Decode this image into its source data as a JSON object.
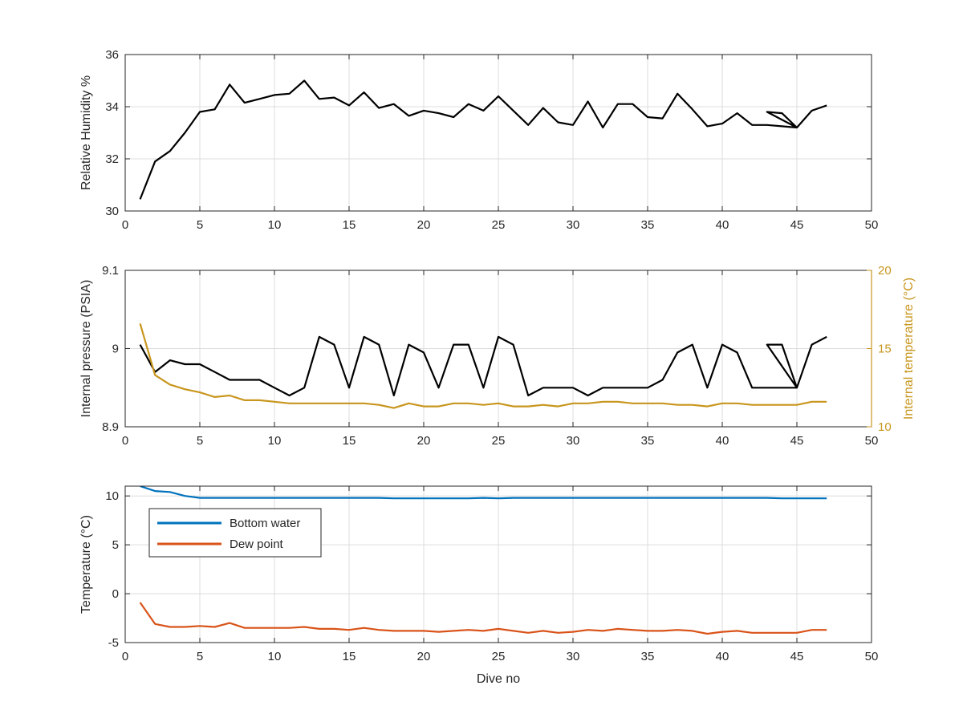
{
  "colors": {
    "pressure": "#000000",
    "humidity": "#000000",
    "internal_temperature": "#c8961e",
    "bottom_water": "#0072bd",
    "dew_point": "#d95319",
    "grid": "#dcdcdc",
    "axis": "#262626"
  },
  "chart_data": [
    {
      "type": "line",
      "xlabel": "",
      "ylabel": "Relative Humidity %",
      "xlim": [
        0,
        50
      ],
      "ylim": [
        30,
        36
      ],
      "xticks": [
        0,
        5,
        10,
        15,
        20,
        25,
        30,
        35,
        40,
        45,
        50
      ],
      "yticks": [
        30,
        32,
        34,
        36
      ],
      "grid": true,
      "series": [
        {
          "color_key": "humidity",
          "x": [
            1,
            2,
            3,
            4,
            5,
            6,
            7,
            8,
            9,
            10,
            11,
            12,
            13,
            14,
            15,
            16,
            17,
            18,
            19,
            20,
            21,
            22,
            23,
            24,
            25,
            26,
            27,
            28,
            29,
            30,
            31,
            32,
            33,
            34,
            35,
            36,
            37,
            38,
            39,
            40,
            41,
            42,
            43,
            44,
            45,
            43,
            44,
            45,
            46,
            47
          ],
          "y": [
            30.45,
            31.9,
            32.3,
            33.0,
            33.8,
            33.9,
            34.85,
            34.15,
            34.3,
            34.45,
            34.5,
            35.0,
            34.3,
            34.35,
            34.05,
            34.55,
            33.95,
            34.1,
            33.65,
            33.85,
            33.75,
            33.6,
            34.1,
            33.85,
            34.4,
            33.85,
            33.3,
            33.95,
            33.4,
            33.3,
            34.2,
            33.2,
            34.1,
            34.1,
            33.6,
            33.55,
            34.5,
            33.9,
            33.25,
            33.35,
            33.75,
            33.3,
            33.3,
            33.25,
            33.2,
            33.8,
            33.75,
            33.2,
            33.85,
            34.05
          ]
        }
      ]
    },
    {
      "type": "line",
      "xlabel": "",
      "ylabel": "Internal pressure (PSIA)",
      "ylabel_right": "Internal temperature (°C)",
      "xlim": [
        0,
        50
      ],
      "ylim": [
        8.9,
        9.1
      ],
      "ylim_right": [
        10,
        20
      ],
      "xticks": [
        0,
        5,
        10,
        15,
        20,
        25,
        30,
        35,
        40,
        45,
        50
      ],
      "yticks": [
        8.9,
        9,
        9.1
      ],
      "ytick_labels": [
        "8.9",
        "9",
        "9.1"
      ],
      "yticks_right": [
        10,
        15,
        20
      ],
      "grid": true,
      "series": [
        {
          "color_key": "pressure",
          "axis": "left",
          "x": [
            1,
            2,
            3,
            4,
            5,
            6,
            7,
            8,
            9,
            10,
            11,
            12,
            13,
            14,
            15,
            16,
            17,
            18,
            19,
            20,
            21,
            22,
            23,
            24,
            25,
            26,
            27,
            28,
            29,
            30,
            31,
            32,
            33,
            34,
            35,
            36,
            37,
            38,
            39,
            40,
            41,
            42,
            43,
            44,
            45,
            43,
            44,
            45,
            46,
            47
          ],
          "y": [
            9.005,
            8.97,
            8.985,
            8.98,
            8.98,
            8.97,
            8.96,
            8.96,
            8.96,
            8.95,
            8.94,
            8.95,
            9.015,
            9.005,
            8.95,
            9.015,
            9.005,
            8.94,
            9.005,
            8.995,
            8.95,
            9.005,
            9.005,
            8.95,
            9.015,
            9.005,
            8.94,
            8.95,
            8.95,
            8.95,
            8.94,
            8.95,
            8.95,
            8.95,
            8.95,
            8.96,
            8.995,
            9.005,
            8.95,
            9.005,
            8.995,
            8.95,
            8.95,
            8.95,
            8.95,
            9.005,
            9.005,
            8.95,
            9.005,
            9.015
          ]
        },
        {
          "color_key": "internal_temperature",
          "axis": "right",
          "x": [
            1,
            2,
            3,
            4,
            5,
            6,
            7,
            8,
            9,
            10,
            11,
            12,
            13,
            14,
            15,
            16,
            17,
            18,
            19,
            20,
            21,
            22,
            23,
            24,
            25,
            26,
            27,
            28,
            29,
            30,
            31,
            32,
            33,
            34,
            35,
            36,
            37,
            38,
            39,
            40,
            41,
            42,
            43,
            44,
            45,
            46,
            47
          ],
          "y": [
            16.6,
            13.3,
            12.7,
            12.4,
            12.2,
            11.9,
            12.0,
            11.7,
            11.7,
            11.6,
            11.5,
            11.5,
            11.5,
            11.5,
            11.5,
            11.5,
            11.4,
            11.2,
            11.5,
            11.3,
            11.3,
            11.5,
            11.5,
            11.4,
            11.5,
            11.3,
            11.3,
            11.4,
            11.3,
            11.5,
            11.5,
            11.6,
            11.6,
            11.5,
            11.5,
            11.5,
            11.4,
            11.4,
            11.3,
            11.5,
            11.5,
            11.4,
            11.4,
            11.4,
            11.4,
            11.6,
            11.6
          ]
        }
      ]
    },
    {
      "type": "line",
      "xlabel": "Dive no",
      "ylabel": "Temperature (°C)",
      "xlim": [
        0,
        50
      ],
      "ylim": [
        -5,
        11
      ],
      "xticks": [
        0,
        5,
        10,
        15,
        20,
        25,
        30,
        35,
        40,
        45,
        50
      ],
      "yticks": [
        -5,
        0,
        5,
        10
      ],
      "grid": true,
      "legend": {
        "placement": "top-left"
      },
      "series": [
        {
          "name": "Bottom water",
          "color_key": "bottom_water",
          "x": [
            1,
            2,
            3,
            4,
            5,
            6,
            7,
            8,
            9,
            10,
            11,
            12,
            13,
            14,
            15,
            16,
            17,
            18,
            19,
            20,
            21,
            22,
            23,
            24,
            25,
            26,
            27,
            28,
            29,
            30,
            31,
            32,
            33,
            34,
            35,
            36,
            37,
            38,
            39,
            40,
            41,
            42,
            43,
            44,
            45,
            46,
            47
          ],
          "y": [
            11.0,
            10.5,
            10.4,
            10.0,
            9.8,
            9.8,
            9.8,
            9.8,
            9.8,
            9.8,
            9.8,
            9.8,
            9.8,
            9.8,
            9.8,
            9.8,
            9.8,
            9.75,
            9.75,
            9.75,
            9.75,
            9.75,
            9.75,
            9.8,
            9.75,
            9.8,
            9.8,
            9.8,
            9.8,
            9.8,
            9.8,
            9.8,
            9.8,
            9.8,
            9.8,
            9.8,
            9.8,
            9.8,
            9.8,
            9.8,
            9.8,
            9.8,
            9.8,
            9.75,
            9.75,
            9.75,
            9.75
          ]
        },
        {
          "name": "Dew point",
          "color_key": "dew_point",
          "x": [
            1,
            2,
            3,
            4,
            5,
            6,
            7,
            8,
            9,
            10,
            11,
            12,
            13,
            14,
            15,
            16,
            17,
            18,
            19,
            20,
            21,
            22,
            23,
            24,
            25,
            26,
            27,
            28,
            29,
            30,
            31,
            32,
            33,
            34,
            35,
            36,
            37,
            38,
            39,
            40,
            41,
            42,
            43,
            44,
            45,
            46,
            47
          ],
          "y": [
            -0.9,
            -3.1,
            -3.4,
            -3.4,
            -3.3,
            -3.4,
            -3.0,
            -3.5,
            -3.5,
            -3.5,
            -3.5,
            -3.4,
            -3.6,
            -3.6,
            -3.7,
            -3.5,
            -3.7,
            -3.8,
            -3.8,
            -3.8,
            -3.9,
            -3.8,
            -3.7,
            -3.8,
            -3.6,
            -3.8,
            -4.0,
            -3.8,
            -4.0,
            -3.9,
            -3.7,
            -3.8,
            -3.6,
            -3.7,
            -3.8,
            -3.8,
            -3.7,
            -3.8,
            -4.1,
            -3.9,
            -3.8,
            -4.0,
            -4.0,
            -4.0,
            -4.0,
            -3.7,
            -3.7
          ]
        }
      ]
    }
  ]
}
